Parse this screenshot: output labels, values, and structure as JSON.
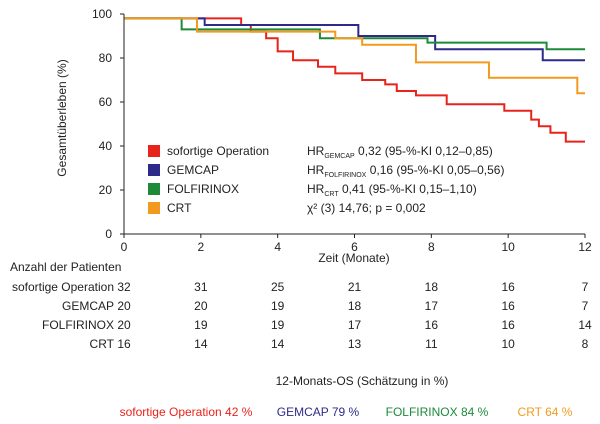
{
  "chart_data": {
    "type": "line",
    "subtype": "kaplan-meier-step",
    "xlabel": "Zeit (Monate)",
    "ylabel": "Gesamtüberleben (%)",
    "xlim": [
      0,
      12
    ],
    "ylim": [
      0,
      100
    ],
    "x_ticks": [
      0,
      2,
      4,
      6,
      8,
      10,
      12
    ],
    "y_ticks": [
      0,
      20,
      40,
      60,
      80,
      100
    ],
    "grid": false,
    "legend_position": "lower-left",
    "series": [
      {
        "name": "sofortige Operation",
        "color": "#e8231b",
        "x": [
          0,
          3.05,
          3.3,
          3.7,
          4.0,
          4.4,
          5.05,
          5.5,
          6.2,
          6.8,
          7.1,
          7.6,
          8.4,
          9.9,
          10.6,
          10.8,
          11.1,
          11.5,
          12.0
        ],
        "y": [
          98,
          95,
          92,
          89,
          83,
          79,
          76,
          73,
          70,
          68,
          65,
          63,
          59,
          56,
          52,
          49,
          46,
          42,
          42
        ]
      },
      {
        "name": "GEMCAP",
        "color": "#2e2a8a",
        "x": [
          0,
          2.1,
          6.1,
          8.1,
          10.9,
          12.0
        ],
        "y": [
          98,
          95,
          90,
          84,
          79,
          79
        ]
      },
      {
        "name": "FOLFIRINOX",
        "color": "#1d8a3a",
        "x": [
          0,
          1.5,
          5.1,
          7.9,
          11.0,
          12.0
        ],
        "y": [
          98,
          93,
          89,
          87,
          84,
          84
        ]
      },
      {
        "name": "CRT",
        "color": "#f29a1f",
        "x": [
          0,
          1.9,
          5.5,
          6.2,
          7.6,
          9.5,
          11.8,
          12.0
        ],
        "y": [
          98,
          92,
          89,
          86,
          78,
          71,
          64,
          64
        ]
      }
    ],
    "annotations": [
      {
        "label": "HR",
        "sub": "GEMCAP",
        "text": " 0,32 (95-%-KI 0,12–0,85)"
      },
      {
        "label": "HR",
        "sub": "FOLFIRINOX",
        "text": " 0,16 (95-%-KI 0,05–0,56)"
      },
      {
        "label": "HR",
        "sub": "CRT",
        "text": " 0,41 (95-%-KI 0,15–1,10)"
      },
      {
        "label": "χ² (3)",
        "sub": "",
        "text": " 14,76; p = 0,002"
      }
    ],
    "risk_table": {
      "title": "Anzahl der Patienten",
      "times": [
        0,
        2,
        4,
        6,
        8,
        10,
        12
      ],
      "rows": [
        {
          "label": "sofortige Operation",
          "values": [
            32,
            31,
            25,
            21,
            18,
            16,
            7
          ]
        },
        {
          "label": "GEMCAP",
          "values": [
            20,
            20,
            19,
            18,
            17,
            16,
            7
          ]
        },
        {
          "label": "FOLFIRINOX",
          "values": [
            20,
            19,
            19,
            17,
            16,
            16,
            14
          ]
        },
        {
          "label": "CRT",
          "values": [
            16,
            14,
            14,
            13,
            11,
            10,
            8
          ]
        }
      ]
    },
    "os_summary": {
      "title": "12-Monats-OS (Schätzung in %)",
      "items": [
        {
          "text": "sofortige Operation 42 %",
          "color": "#e8231b"
        },
        {
          "text": "GEMCAP 79 %",
          "color": "#2e2a8a"
        },
        {
          "text": "FOLFIRINOX 84 %",
          "color": "#1d8a3a"
        },
        {
          "text": "CRT 64 %",
          "color": "#f29a1f"
        }
      ]
    }
  }
}
